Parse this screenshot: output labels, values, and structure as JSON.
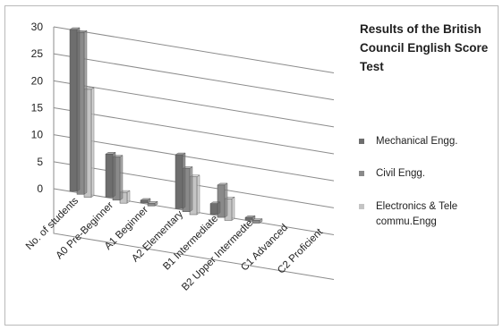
{
  "chart_data": {
    "type": "bar",
    "title_lines": [
      "Results of the British",
      "Council English Score",
      "Test"
    ],
    "categories": [
      "No. of students",
      "A0 Pre-Beginner",
      "A1 Beginner",
      "A2 Elementary",
      "B1 Intermediate",
      "B2 Upper Intermedte",
      "C1 Advanced",
      "C2 Proficient"
    ],
    "series": [
      {
        "name": "Mechanical Engg.",
        "values": [
          30,
          8,
          0.5,
          10,
          2,
          0.5,
          0,
          0
        ]
      },
      {
        "name": "Civil Engg.",
        "values": [
          30,
          8,
          0.5,
          8,
          6,
          0.5,
          0,
          0
        ]
      },
      {
        "name": "Electronics & Tele commu.Engg",
        "values": [
          20,
          2,
          0,
          7,
          4,
          0,
          0,
          0
        ]
      }
    ],
    "yticks": [
      0,
      5,
      10,
      15,
      20,
      25,
      30
    ],
    "ylim": [
      0,
      30
    ],
    "legend_position": "right",
    "grid": true,
    "colors": {
      "series_a": "#6e6e6e",
      "series_b": "#8a8a8a",
      "series_c": "#c4c4c4",
      "grid": "#8c8c8c",
      "text": "#222222"
    }
  }
}
